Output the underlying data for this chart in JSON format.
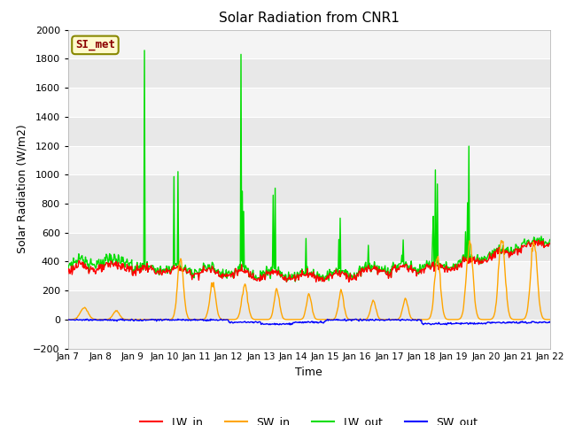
{
  "title": "Solar Radiation from CNR1",
  "xlabel": "Time",
  "ylabel": "Solar Radiation (W/m2)",
  "ylim": [
    -200,
    2000
  ],
  "yticks": [
    -200,
    0,
    200,
    400,
    600,
    800,
    1000,
    1200,
    1400,
    1600,
    1800,
    2000
  ],
  "label_text": "SI_met",
  "label_fgcolor": "#8B0000",
  "label_bgcolor": "#FFFACD",
  "label_edgecolor": "#888800",
  "colors": {
    "LW_in": "#FF0000",
    "SW_in": "#FFA500",
    "LW_out": "#00DD00",
    "SW_out": "#0000FF"
  },
  "bg_color": "#E8E8E8",
  "bg_stripe_color": "#F4F4F4",
  "line_width": 1.0,
  "n_days": 15,
  "n_pts_per_day": 48,
  "xlim": [
    0,
    15
  ],
  "tick_labels": [
    "Jan 7",
    "Jan 8",
    "Jan 9",
    "Jan 10",
    "Jan 11",
    "Jan 12",
    "Jan 13",
    "Jan 14",
    "Jan 15",
    "Jan 16",
    "Jan 17",
    "Jan 18",
    "Jan 19",
    "Jan 20",
    "Jan 21",
    "Jan 22"
  ]
}
